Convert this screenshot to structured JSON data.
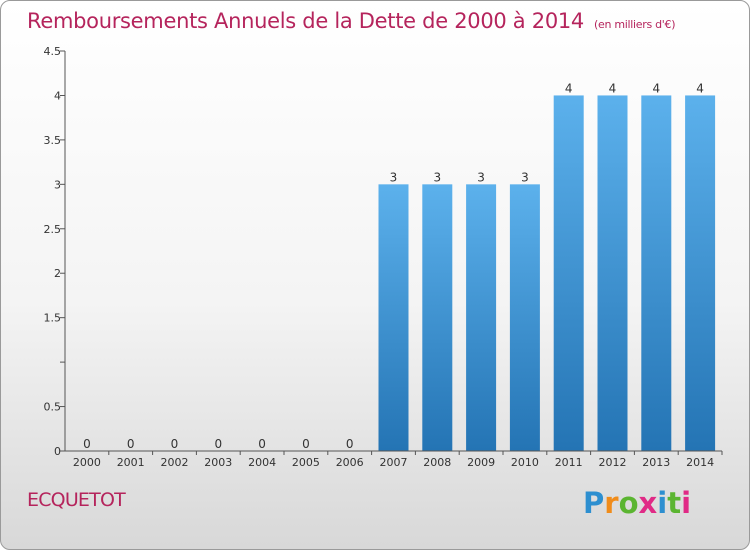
{
  "title": "Remboursements Annuels de la Dette de 2000 à 2014",
  "unit": "(en milliers d'€)",
  "town": "ECQUETOT",
  "logo": {
    "text": "Proxiti",
    "colors": [
      "#2d8fd0",
      "#f08c1a",
      "#5bb531",
      "#e02a86",
      "#2d8fd0",
      "#5bb531",
      "#e02a86"
    ]
  },
  "colors": {
    "bar_light": "#5cb1ec",
    "bar_dark": "#2474b4",
    "title": "#b5245c"
  },
  "chart_data": {
    "type": "bar",
    "categories": [
      "2000",
      "2001",
      "2002",
      "2003",
      "2004",
      "2005",
      "2006",
      "2007",
      "2008",
      "2009",
      "2010",
      "2011",
      "2012",
      "2013",
      "2014"
    ],
    "values": [
      0,
      0,
      0,
      0,
      0,
      0,
      0,
      3,
      3,
      3,
      3,
      4,
      4,
      4,
      4
    ],
    "data_labels": [
      "0",
      "0",
      "0",
      "0",
      "0",
      "0",
      "0",
      "3",
      "3",
      "3",
      "3",
      "4",
      "4",
      "4",
      "4"
    ],
    "y_ticks": [
      {
        "value": 0,
        "label": "0"
      },
      {
        "value": 0.5,
        "label": "0.5"
      },
      {
        "value": 1,
        "label": ""
      },
      {
        "value": 1.5,
        "label": "1.5"
      },
      {
        "value": 2,
        "label": "2"
      },
      {
        "value": 2.5,
        "label": "2.5"
      },
      {
        "value": 3,
        "label": "3"
      },
      {
        "value": 3.5,
        "label": "3.5"
      },
      {
        "value": 4,
        "label": "4"
      },
      {
        "value": 4.5,
        "label": "4.5"
      }
    ],
    "ylim": [
      0,
      4.5
    ],
    "xlabel": "",
    "ylabel": "",
    "grid": false,
    "legend": "none"
  }
}
